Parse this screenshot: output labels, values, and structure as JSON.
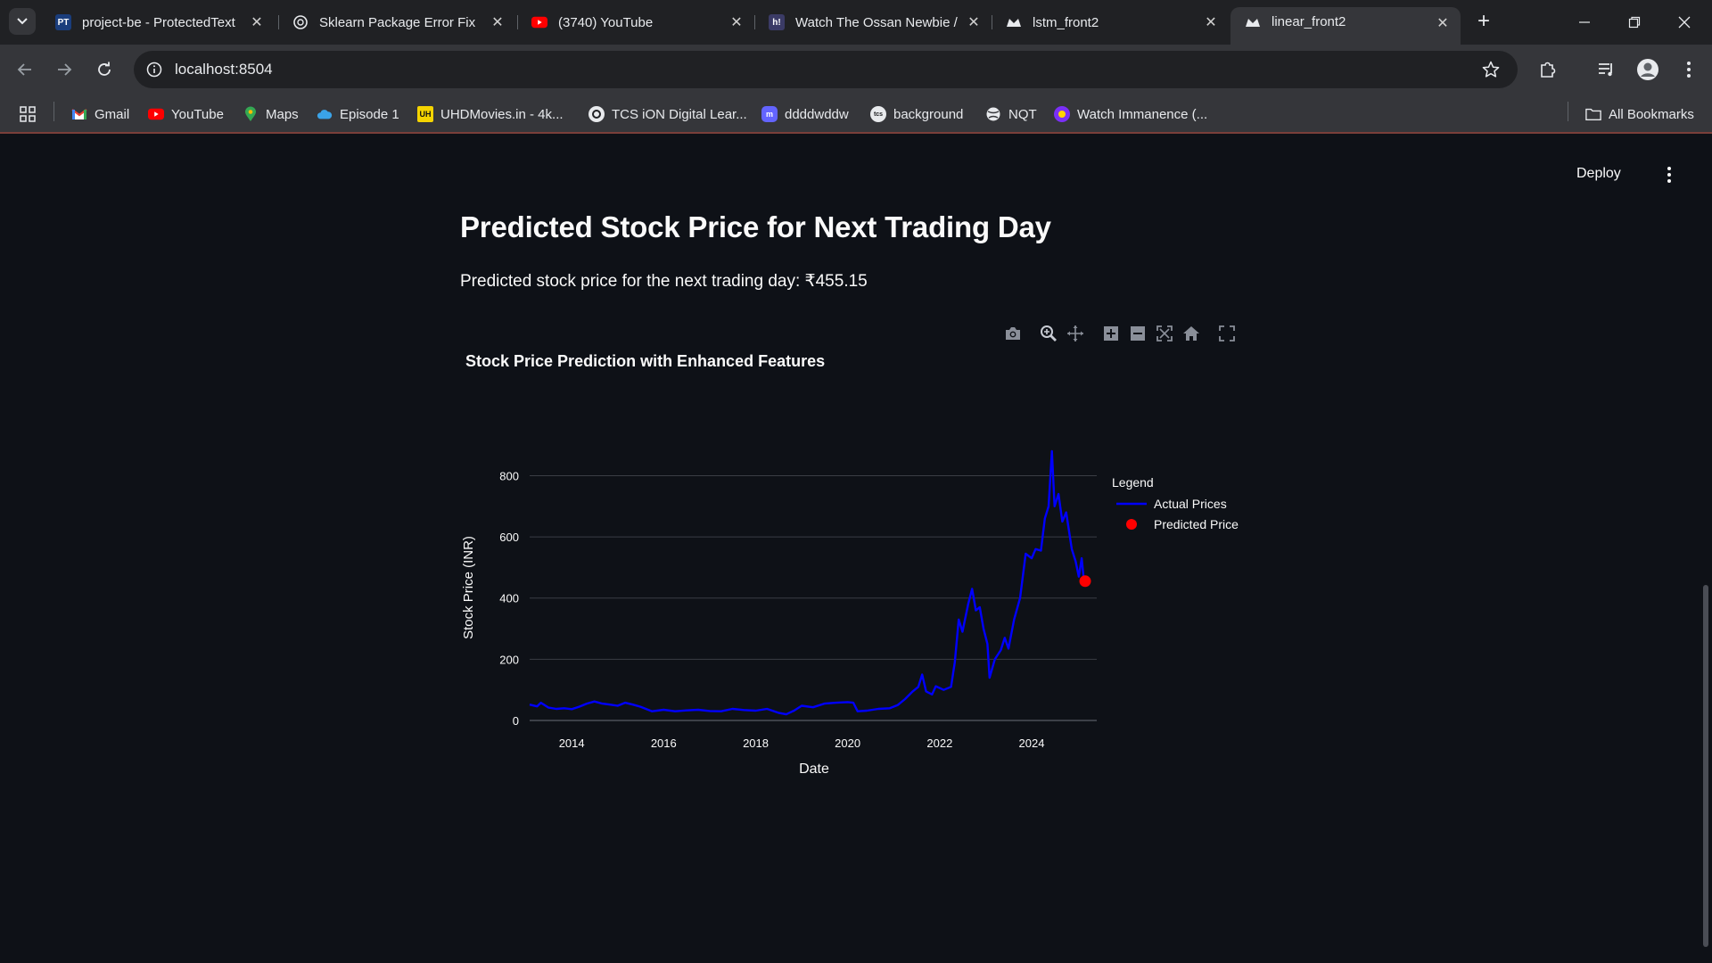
{
  "browser": {
    "tabs": [
      {
        "title": "project-be - ProtectedText",
        "favicon": "PT",
        "active": false
      },
      {
        "title": "Sklearn Package Error Fix",
        "favicon": "openai-icon",
        "active": false
      },
      {
        "title": "(3740) YouTube",
        "favicon": "youtube-icon",
        "active": false
      },
      {
        "title": "Watch The Ossan Newbie /",
        "favicon": "h!",
        "active": false
      },
      {
        "title": "lstm_front2",
        "favicon": "streamlit-icon",
        "active": false
      },
      {
        "title": "linear_front2",
        "favicon": "streamlit-icon",
        "active": true
      }
    ],
    "url": "localhost:8504",
    "bookmarks": [
      {
        "label": "Gmail",
        "icon": "gmail-icon"
      },
      {
        "label": "YouTube",
        "icon": "youtube-icon"
      },
      {
        "label": "Maps",
        "icon": "maps-icon"
      },
      {
        "label": "Episode 1",
        "icon": "cloud-icon"
      },
      {
        "label": "UHDMovies.in - 4k...",
        "icon": "uhd-icon"
      },
      {
        "label": "TCS iON Digital Lear...",
        "icon": "tcs-ion-icon"
      },
      {
        "label": "ddddwddw",
        "icon": "mastodon-icon"
      },
      {
        "label": "background",
        "icon": "tcs-icon"
      },
      {
        "label": "NQT",
        "icon": "globe-icon"
      },
      {
        "label": "Watch Immanence (...",
        "icon": "app-icon"
      }
    ],
    "all_bookmarks_label": "All Bookmarks"
  },
  "app": {
    "deploy_label": "Deploy",
    "title": "Predicted Stock Price for Next Trading Day",
    "prediction_text": "Predicted stock price for the next trading day: ₹455.15"
  },
  "chart_data": {
    "type": "line",
    "title": "Stock Price Prediction with Enhanced Features",
    "xlabel": "Date",
    "ylabel": "Stock Price (INR)",
    "ylim": [
      0,
      880
    ],
    "xlim": [
      "2013-02-01",
      "2025-06-01"
    ],
    "yticks": [
      0,
      200,
      400,
      600,
      800
    ],
    "xticks": [
      "2014",
      "2016",
      "2018",
      "2020",
      "2022",
      "2024"
    ],
    "grid": "horizontal",
    "legend": {
      "title": "Legend",
      "position": "right"
    },
    "series": [
      {
        "name": "Actual Prices",
        "color": "#0000ff",
        "points": [
          [
            "2013-02-01",
            52
          ],
          [
            "2013-04-01",
            46
          ],
          [
            "2013-05-01",
            58
          ],
          [
            "2013-07-01",
            42
          ],
          [
            "2013-09-01",
            38
          ],
          [
            "2013-11-01",
            40
          ],
          [
            "2014-01-01",
            37
          ],
          [
            "2014-03-01",
            45
          ],
          [
            "2014-05-01",
            55
          ],
          [
            "2014-07-01",
            62
          ],
          [
            "2014-09-01",
            55
          ],
          [
            "2014-11-01",
            52
          ],
          [
            "2015-01-01",
            48
          ],
          [
            "2015-03-01",
            58
          ],
          [
            "2015-05-01",
            52
          ],
          [
            "2015-07-01",
            45
          ],
          [
            "2015-10-01",
            30
          ],
          [
            "2016-01-01",
            35
          ],
          [
            "2016-04-01",
            30
          ],
          [
            "2016-07-01",
            33
          ],
          [
            "2016-10-01",
            35
          ],
          [
            "2017-01-01",
            31
          ],
          [
            "2017-04-01",
            30
          ],
          [
            "2017-07-01",
            38
          ],
          [
            "2017-10-01",
            34
          ],
          [
            "2018-01-01",
            32
          ],
          [
            "2018-04-01",
            38
          ],
          [
            "2018-07-01",
            25
          ],
          [
            "2018-09-01",
            20
          ],
          [
            "2018-11-01",
            32
          ],
          [
            "2019-01-01",
            48
          ],
          [
            "2019-04-01",
            43
          ],
          [
            "2019-07-01",
            55
          ],
          [
            "2019-10-01",
            58
          ],
          [
            "2020-01-01",
            60
          ],
          [
            "2020-02-15",
            58
          ],
          [
            "2020-03-20",
            30
          ],
          [
            "2020-06-01",
            32
          ],
          [
            "2020-09-01",
            38
          ],
          [
            "2020-12-01",
            40
          ],
          [
            "2021-02-01",
            50
          ],
          [
            "2021-04-01",
            70
          ],
          [
            "2021-06-01",
            95
          ],
          [
            "2021-07-15",
            110
          ],
          [
            "2021-08-15",
            150
          ],
          [
            "2021-09-15",
            95
          ],
          [
            "2021-11-01",
            85
          ],
          [
            "2021-12-01",
            112
          ],
          [
            "2022-02-01",
            100
          ],
          [
            "2022-04-01",
            110
          ],
          [
            "2022-05-01",
            190
          ],
          [
            "2022-06-01",
            330
          ],
          [
            "2022-07-01",
            290
          ],
          [
            "2022-08-15",
            380
          ],
          [
            "2022-09-15",
            430
          ],
          [
            "2022-10-15",
            360
          ],
          [
            "2022-11-15",
            370
          ],
          [
            "2022-12-15",
            300
          ],
          [
            "2023-01-15",
            250
          ],
          [
            "2023-02-01",
            140
          ],
          [
            "2023-03-15",
            200
          ],
          [
            "2023-05-01",
            230
          ],
          [
            "2023-06-01",
            270
          ],
          [
            "2023-07-01",
            235
          ],
          [
            "2023-08-15",
            330
          ],
          [
            "2023-10-01",
            400
          ],
          [
            "2023-11-15",
            545
          ],
          [
            "2024-01-01",
            530
          ],
          [
            "2024-02-01",
            560
          ],
          [
            "2024-03-15",
            555
          ],
          [
            "2024-04-15",
            660
          ],
          [
            "2024-05-15",
            700
          ],
          [
            "2024-06-10",
            880
          ],
          [
            "2024-07-01",
            700
          ],
          [
            "2024-08-01",
            740
          ],
          [
            "2024-09-01",
            650
          ],
          [
            "2024-10-01",
            680
          ],
          [
            "2024-11-15",
            560
          ],
          [
            "2024-12-15",
            520
          ],
          [
            "2025-01-10",
            470
          ],
          [
            "2025-02-01",
            530
          ],
          [
            "2025-02-20",
            455
          ]
        ]
      },
      {
        "name": "Predicted Price",
        "color": "#ff0000",
        "mode": "marker",
        "points": [
          [
            "2025-03-01",
            455.15
          ]
        ]
      }
    ]
  }
}
